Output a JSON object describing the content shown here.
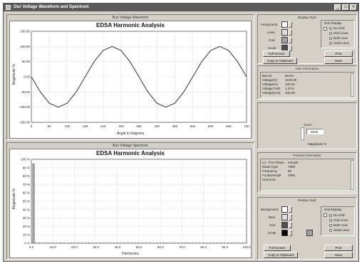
{
  "window": {
    "title": "Our Voltage Waveform and Spectrum"
  },
  "top_panel": {
    "group_title": "Bus Voltage Waveform",
    "chart_title": "EDSA Harmonic Analysis",
    "ylabel": "Magnitude %",
    "xlabel": "Angle in Degrees",
    "yticks": [
      "150.00",
      "100.00",
      "50.00",
      "0.00",
      "-50.00",
      "-100.00",
      "-150.00"
    ],
    "xticks": [
      "0",
      "60",
      "120",
      "180",
      "240",
      "300",
      "360",
      "420",
      "480",
      "540",
      "600",
      "660",
      "720"
    ]
  },
  "bottom_panel": {
    "group_title": "Bus Voltage Spectrum",
    "chart_title": "EDSA Harmonic Analysis",
    "ylabel": "Magnitude %",
    "xlabel": "Harmonics",
    "yticks": [
      "100 %",
      "90 %",
      "80 %",
      "70 %",
      "60 %",
      "50 %",
      "40 %",
      "30 %",
      "20 %",
      "10 %",
      "0 %"
    ],
    "xticks": [
      "0.0",
      "10.0",
      "20.0",
      "30.0",
      "40.0",
      "50.0",
      "60.0",
      "70.0",
      "80.0",
      "90.0",
      "100.0"
    ]
  },
  "display_style_top": {
    "title": "Display Style",
    "rows": [
      "Foreground",
      "Lines",
      "Grid",
      "Scale"
    ],
    "grid_display": {
      "title": "Grid Display",
      "options": [
        "No Grid",
        "Grid Lines",
        "Both Axes",
        "Solid Lines"
      ]
    },
    "buttons": {
      "full_screen": "Full Screen",
      "copy_clipboard": "Copy to Clipboard",
      "print": "Print",
      "save": "Save"
    }
  },
  "user_information": {
    "title": "User Information",
    "rows": [
      {
        "label": "Bus ID",
        "value": "BUS4"
      },
      {
        "label": "Voltage(V)",
        "value": "4160.00"
      },
      {
        "label": "Voltage(%)",
        "value": "100.00"
      },
      {
        "label": "Voltage THD",
        "value": "1.37%"
      },
      {
        "label": "Voltage(rms)",
        "value": "100.09"
      }
    ]
  },
  "zoom": {
    "title": "Zoom",
    "value": "Wide",
    "caption": "Magnitude %"
  },
  "present_information": {
    "title": "Present Information",
    "rows": [
      {
        "label": "Ln - Pos Phase",
        "value": "sample"
      },
      {
        "label": "Mode Type",
        "value": "7800"
      },
      {
        "label": "Frequency",
        "value": "60"
      },
      {
        "label": "Fundamental",
        "value": "4000"
      },
      {
        "label": "Harmonic",
        "value": ""
      }
    ]
  },
  "display_style_bottom": {
    "title": "Display Style",
    "rows": [
      "Background",
      "Bars",
      "Grid",
      "Scale"
    ],
    "grid_display": {
      "title": "Grid Display",
      "options": [
        "No Grid",
        "Grid Lines",
        "Both Axes",
        "Solid Lines"
      ]
    },
    "buttons": {
      "full_screen": "Full Screen",
      "copy_clipboard": "Copy to Clipboard",
      "print": "Print",
      "save": "Save"
    }
  },
  "colors": {
    "swatch_light": "#dcdcdc",
    "swatch_mid": "#a0a0a0",
    "swatch_dark": "#505050",
    "swatch_black": "#000000"
  },
  "chart_data": [
    {
      "type": "line",
      "title": "EDSA Harmonic Analysis",
      "xlabel": "Angle in Degrees",
      "ylabel": "Magnitude %",
      "xlim": [
        0,
        720
      ],
      "ylim": [
        -150,
        150
      ],
      "grid": true,
      "x": [
        0,
        30,
        60,
        90,
        120,
        150,
        180,
        210,
        240,
        270,
        300,
        330,
        360,
        390,
        420,
        450,
        480,
        510,
        540,
        570,
        600,
        630,
        660,
        690,
        720
      ],
      "y": [
        0,
        -50,
        -87,
        -100,
        -87,
        -50,
        0,
        50,
        87,
        100,
        87,
        50,
        0,
        -50,
        -87,
        -100,
        -87,
        -50,
        0,
        50,
        87,
        100,
        87,
        50,
        0
      ]
    },
    {
      "type": "bar",
      "title": "EDSA Harmonic Analysis",
      "xlabel": "Harmonics",
      "ylabel": "Magnitude %",
      "xlim": [
        0,
        100
      ],
      "ylim": [
        0,
        100
      ],
      "grid": true,
      "x": [
        1
      ],
      "values": [
        95
      ]
    }
  ]
}
